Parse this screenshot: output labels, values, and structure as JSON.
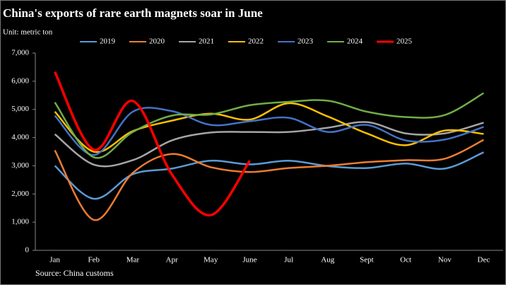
{
  "chart_data": {
    "type": "line",
    "title": "China's exports of rare earth magnets soar in June",
    "subtitle": "Unit: metric ton",
    "source": "Source: China customs",
    "categories": [
      "Jan",
      "Feb",
      "Mar",
      "Apr",
      "May",
      "June",
      "Jul",
      "Aug",
      "Sept",
      "Oct",
      "Nov",
      "Dec"
    ],
    "series": [
      {
        "name": "2019",
        "color": "#5b9bd5",
        "values": [
          3000,
          1830,
          2700,
          2900,
          3180,
          3050,
          3180,
          2990,
          2920,
          3080,
          2900,
          3480
        ]
      },
      {
        "name": "2020",
        "color": "#ed7d31",
        "values": [
          3550,
          1080,
          2750,
          3420,
          2950,
          2780,
          2920,
          3000,
          3130,
          3200,
          3250,
          3920
        ]
      },
      {
        "name": "2021",
        "color": "#a5a5a5",
        "values": [
          4120,
          3040,
          3200,
          3900,
          4180,
          4200,
          4200,
          4350,
          4550,
          4150,
          4150,
          4530
        ]
      },
      {
        "name": "2022",
        "color": "#ffc000",
        "values": [
          4920,
          3500,
          4230,
          4600,
          4850,
          4640,
          5220,
          4750,
          4150,
          3730,
          4250,
          4130
        ]
      },
      {
        "name": "2023",
        "color": "#4472c4",
        "values": [
          4780,
          3380,
          4920,
          4940,
          4450,
          4580,
          4700,
          4200,
          4450,
          3900,
          3930,
          4380
        ]
      },
      {
        "name": "2024",
        "color": "#70ad47",
        "values": [
          5250,
          3300,
          4200,
          4780,
          4820,
          5150,
          5270,
          5310,
          4920,
          4730,
          4800,
          5580
        ]
      },
      {
        "name": "2025",
        "color": "#ff0000",
        "values": [
          6330,
          3570,
          5300,
          2700,
          1250,
          3180,
          null,
          null,
          null,
          null,
          null,
          null
        ]
      }
    ],
    "ylim": [
      0,
      7000
    ],
    "yticks": [
      0,
      {
        "value": 1000,
        "label": "1,000"
      },
      {
        "value": 2000,
        "label": "2,000"
      },
      {
        "value": 3000,
        "label": "3,000"
      },
      {
        "value": 4000,
        "label": "4,000"
      },
      {
        "value": 5000,
        "label": "5,000"
      },
      {
        "value": 6000,
        "label": "6,000"
      },
      {
        "value": 7000,
        "label": "7,000"
      }
    ],
    "grid": false,
    "legend": "top"
  }
}
